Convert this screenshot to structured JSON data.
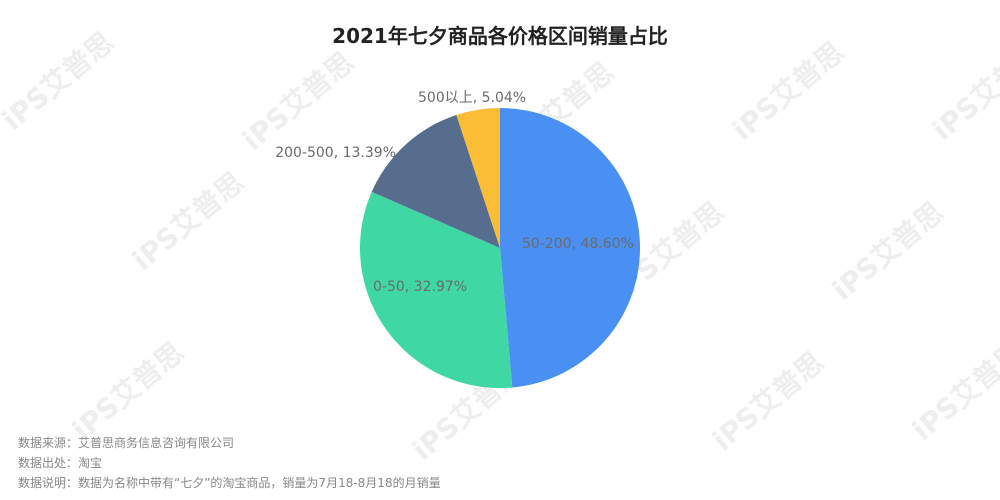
{
  "chart_data": {
    "type": "pie",
    "title": "2021年七夕商品各价格区间销量占比",
    "slices": [
      {
        "label": "50-200, 48.60%",
        "category": "50-200",
        "value": 48.6,
        "color": "#4a8ff2"
      },
      {
        "label": "0-50, 32.97%",
        "category": "0-50",
        "value": 32.97,
        "color": "#3fd8a5"
      },
      {
        "label": "200-500, 13.39%",
        "category": "200-500",
        "value": 13.39,
        "color": "#566d8e"
      },
      {
        "label": "500以上, 5.04%",
        "category": "500以上",
        "value": 5.04,
        "color": "#fbbd35"
      }
    ],
    "legend": "none"
  },
  "footnotes": {
    "source": "数据来源：艾普思商务信息咨询有限公司",
    "origin": "数据出处：淘宝",
    "note": "数据说明：数据为名称中带有“七夕”的淘宝商品，销量为7月18-8月18的月销量"
  },
  "watermark": {
    "text": "iPS艾普思",
    "color": "#cfcfcf"
  }
}
